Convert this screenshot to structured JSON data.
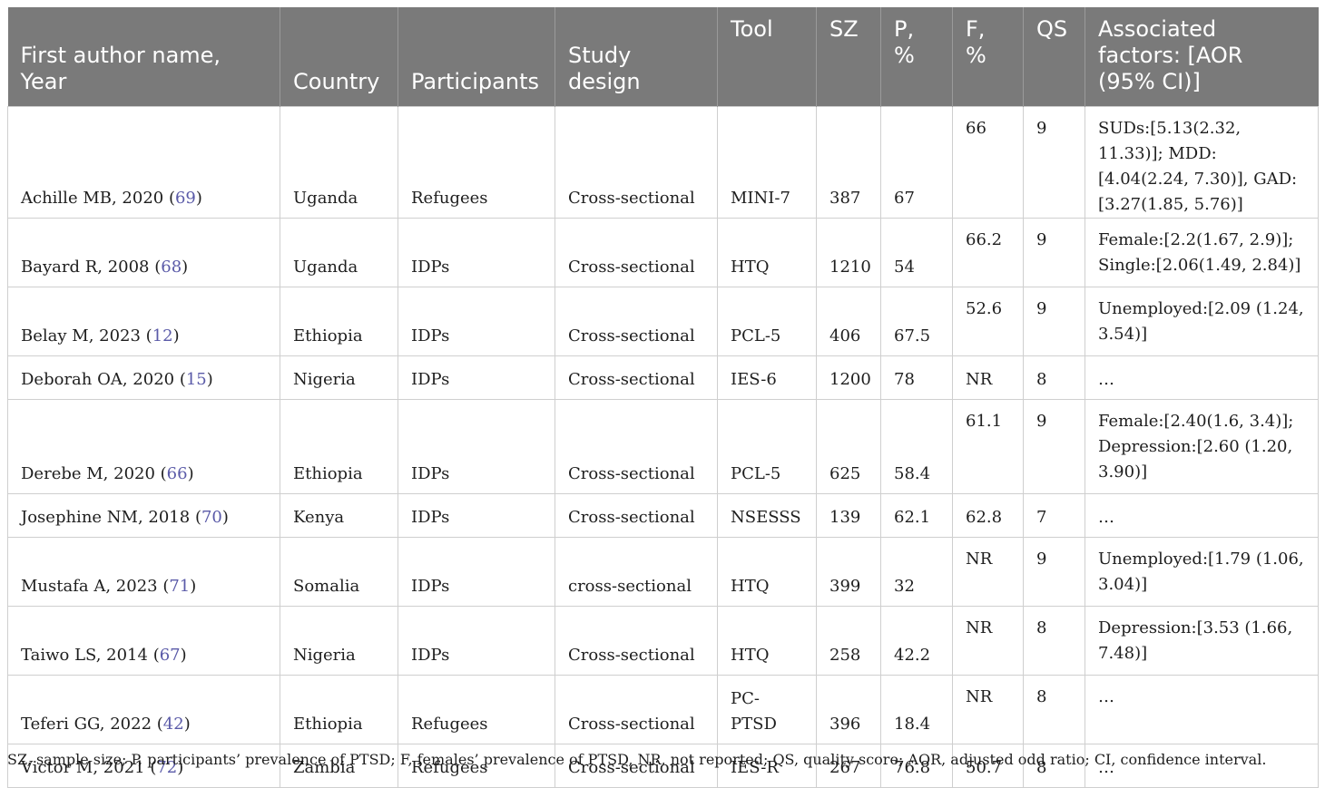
{
  "headers": [
    "First author name, Year",
    "Country",
    "Participants",
    "Study design",
    "Tool",
    "SZ",
    "P, %",
    "F, %",
    "QS",
    "Associated factors: [AOR (95% CI)]"
  ],
  "rows": [
    {
      "author": "Achille MB, 2020",
      "ref": "69",
      "country": "Uganda",
      "participants": "Refugees",
      "design": "Cross-sectional",
      "tool": "MINI-7",
      "sz": "387",
      "p": "67",
      "f": "66",
      "qs": "9",
      "factors": "SUDs:[5.13(2.32, 11.33)]; MDD:[4.04(2.24, 7.30)], GAD: [3.27(1.85, 5.76)]"
    },
    {
      "author": "Bayard R, 2008",
      "ref": "68",
      "country": "Uganda",
      "participants": "IDPs",
      "design": "Cross-sectional",
      "tool": "HTQ",
      "sz": "1210",
      "p": "54",
      "f": "66.2",
      "qs": "9",
      "factors": "Female:[2.2(1.67, 2.9)]; Single:[2.06(1.49, 2.84)]"
    },
    {
      "author": "Belay M, 2023",
      "ref": "12",
      "country": "Ethiopia",
      "participants": "IDPs",
      "design": "Cross-sectional",
      "tool": "PCL-5",
      "sz": "406",
      "p": "67.5",
      "f": "52.6",
      "qs": "9",
      "factors": "Unemployed:[2.09 (1.24, 3.54)]"
    },
    {
      "author": "Deborah OA, 2020",
      "ref": "15",
      "country": "Nigeria",
      "participants": "IDPs",
      "design": "Cross-sectional",
      "tool": "IES-6",
      "sz": "1200",
      "p": "78",
      "f": "NR",
      "qs": "8",
      "factors": "…"
    },
    {
      "author": "Derebe M, 2020",
      "ref": "66",
      "country": "Ethiopia",
      "participants": "IDPs",
      "design": "Cross-sectional",
      "tool": "PCL-5",
      "sz": "625",
      "p": "58.4",
      "f": "61.1",
      "qs": "9",
      "factors": "Female:[2.40(1.6, 3.4)]; Depression:[2.60 (1.20, 3.90)]"
    },
    {
      "author": "Josephine NM, 2018",
      "ref": "70",
      "country": "Kenya",
      "participants": "IDPs",
      "design": "Cross-sectional",
      "tool": "NSESSS",
      "sz": "139",
      "p": "62.1",
      "f": "62.8",
      "qs": "7",
      "factors": "…"
    },
    {
      "author": "Mustafa A, 2023",
      "ref": "71",
      "country": "Somalia",
      "participants": "IDPs",
      "design": "cross-sectional",
      "tool": "HTQ",
      "sz": "399",
      "p": "32",
      "f": "NR",
      "qs": "9",
      "factors": "Unemployed:[1.79 (1.06, 3.04)]"
    },
    {
      "author": "Taiwo LS, 2014",
      "ref": "67",
      "country": "Nigeria",
      "participants": "IDPs",
      "design": "Cross-sectional",
      "tool": "HTQ",
      "sz": "258",
      "p": "42.2",
      "f": "NR",
      "qs": "8",
      "factors": "Depression:[3.53 (1.66, 7.48)]"
    },
    {
      "author": "Teferi GG, 2022",
      "ref": "42",
      "country": "Ethiopia",
      "participants": "Refugees",
      "design": "Cross-sectional",
      "tool": "PC-PTSD",
      "sz": "396",
      "p": "18.4",
      "f": "NR",
      "qs": "8",
      "factors": "…"
    },
    {
      "author": "Victor M, 2021",
      "ref": "72",
      "country": "Zambia",
      "participants": "Refugees",
      "design": "Cross-sectional",
      "tool": "IES-R",
      "sz": "267",
      "p": "76.8",
      "f": "50.7",
      "qs": "8",
      "factors": "…"
    }
  ],
  "footnote": "SZ, sample size; P, participants’ prevalence of PTSD; F, females’ prevalence of PTSD, NR, not reported; QS, quality score; AOR, adjusted odd ratio; CI, confidence interval.",
  "colors": {
    "header_bg": "#7a7a7a",
    "header_text": "#ffffff",
    "ref_link": "#5a5aa8",
    "border": "#cfcfcf"
  }
}
